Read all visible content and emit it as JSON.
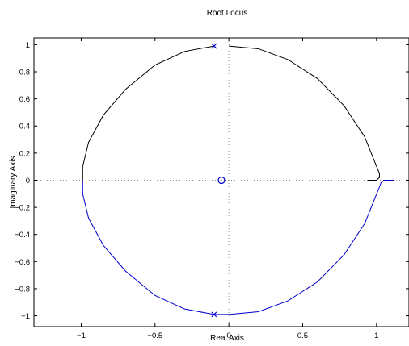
{
  "chart_data": {
    "type": "scatter",
    "title": "Root Locus",
    "xlabel": "Real Axis",
    "ylabel": "Imaginary Axis",
    "xlim": [
      -1.32,
      1.22
    ],
    "ylim": [
      -1.08,
      1.05
    ],
    "xticks": [
      -1,
      -0.5,
      0,
      0.5,
      1
    ],
    "xtick_labels": [
      "−1",
      "−0.5",
      "0",
      "0.5",
      "1"
    ],
    "yticks": [
      -1,
      -0.8,
      -0.6,
      -0.4,
      -0.2,
      0,
      0.2,
      0.4,
      0.6,
      0.8,
      1
    ],
    "ytick_labels": [
      "−1",
      "−0.8",
      "−0.6",
      "−0.4",
      "−0.2",
      "0",
      "0.2",
      "0.4",
      "0.6",
      "0.8",
      "1"
    ],
    "grid": false,
    "reference_lines": {
      "x": 0,
      "y": 0,
      "style": "dotted"
    },
    "poles": [
      {
        "x": -0.1,
        "y": 0.99
      },
      {
        "x": -0.1,
        "y": -0.99
      }
    ],
    "zeros": [
      {
        "x": -0.05,
        "y": 0
      }
    ],
    "branches": [
      {
        "color": "#000000",
        "points": [
          [
            -0.1,
            0.99
          ],
          [
            -0.3,
            0.95
          ],
          [
            -0.5,
            0.85
          ],
          [
            -0.7,
            0.67
          ],
          [
            -0.85,
            0.48
          ],
          [
            -0.95,
            0.28
          ],
          [
            -0.99,
            0.1
          ],
          [
            -0.99,
            0.0
          ],
          [
            0.0,
            0.99
          ],
          [
            0.2,
            0.97
          ],
          [
            0.4,
            0.89
          ],
          [
            0.6,
            0.75
          ],
          [
            0.78,
            0.55
          ],
          [
            0.92,
            0.32
          ],
          [
            0.99,
            0.13
          ],
          [
            1.02,
            0.05
          ],
          [
            1.02,
            0.02
          ],
          [
            1.0,
            0.0
          ],
          [
            0.94,
            0.0
          ]
        ]
      },
      {
        "color": "#0000cc",
        "points": [
          [
            -0.99,
            0.0
          ],
          [
            -0.99,
            -0.1
          ],
          [
            -0.95,
            -0.28
          ],
          [
            -0.85,
            -0.48
          ],
          [
            -0.7,
            -0.67
          ],
          [
            -0.5,
            -0.85
          ],
          [
            -0.3,
            -0.95
          ],
          [
            -0.1,
            -0.99
          ],
          [
            0.0,
            -0.99
          ],
          [
            0.2,
            -0.97
          ],
          [
            0.4,
            -0.89
          ],
          [
            0.6,
            -0.75
          ],
          [
            0.78,
            -0.55
          ],
          [
            0.92,
            -0.32
          ],
          [
            0.99,
            -0.13
          ],
          [
            1.02,
            -0.05
          ],
          [
            1.03,
            -0.02
          ],
          [
            1.05,
            0.0
          ],
          [
            1.12,
            0.0
          ]
        ]
      }
    ]
  }
}
